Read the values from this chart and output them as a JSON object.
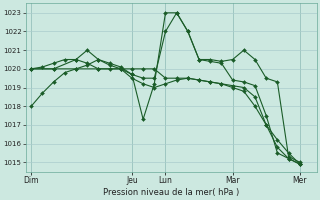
{
  "background_color": "#cce8e0",
  "plot_bg_color": "#cce8e0",
  "grid_color": "#aacccc",
  "line_color": "#1a5c28",
  "xlabel_text": "Pression niveau de la mer( hPa )",
  "ylim": [
    1014.5,
    1023.5
  ],
  "yticks": [
    1015,
    1016,
    1017,
    1018,
    1019,
    1020,
    1021,
    1022,
    1023
  ],
  "day_labels": [
    "Dim",
    "Jeu",
    "Lun",
    "Mar",
    "Mer"
  ],
  "day_x": [
    0,
    9,
    12,
    18,
    24
  ],
  "vline_x": [
    0,
    9,
    12,
    18,
    24
  ],
  "xlim": [
    -0.5,
    25.5
  ],
  "lines": [
    {
      "x": [
        0,
        1,
        2,
        3,
        4,
        5,
        6,
        7,
        8,
        9,
        10,
        11,
        12,
        13,
        14,
        15,
        16,
        17,
        18,
        19,
        20,
        21,
        22,
        23,
        24
      ],
      "y": [
        1018.0,
        1018.7,
        1019.3,
        1019.8,
        1020.0,
        1020.2,
        1020.5,
        1020.3,
        1020.1,
        1019.7,
        1017.3,
        1019.2,
        1023.0,
        1023.0,
        1022.0,
        1020.5,
        1020.4,
        1020.3,
        1019.4,
        1019.3,
        1019.1,
        1017.5,
        1015.5,
        1015.2,
        1014.9
      ]
    },
    {
      "x": [
        0,
        2,
        4,
        6,
        8,
        9,
        10,
        11,
        12,
        13,
        14,
        15,
        16,
        17,
        18,
        19,
        20,
        21,
        22,
        23,
        24
      ],
      "y": [
        1020.0,
        1020.0,
        1020.0,
        1020.0,
        1020.0,
        1020.0,
        1020.0,
        1020.0,
        1019.5,
        1019.5,
        1019.5,
        1019.4,
        1019.3,
        1019.2,
        1019.0,
        1018.8,
        1018.0,
        1017.0,
        1016.2,
        1015.5,
        1014.9
      ]
    },
    {
      "x": [
        0,
        1,
        2,
        3,
        4,
        5,
        6,
        7,
        8,
        9,
        10,
        11,
        12,
        13,
        14,
        15,
        16,
        17,
        18,
        19,
        20,
        21,
        22,
        23,
        24
      ],
      "y": [
        1020.0,
        1020.1,
        1020.3,
        1020.5,
        1020.5,
        1020.3,
        1020.0,
        1020.0,
        1020.0,
        1019.7,
        1019.5,
        1019.5,
        1022.0,
        1023.0,
        1022.0,
        1020.5,
        1020.5,
        1020.4,
        1020.5,
        1021.0,
        1020.5,
        1019.5,
        1019.3,
        1015.3,
        1015.0
      ]
    },
    {
      "x": [
        0,
        2,
        4,
        5,
        6,
        7,
        8,
        9,
        10,
        11,
        12,
        13,
        14,
        15,
        16,
        17,
        18,
        19,
        20,
        21,
        22,
        23,
        24
      ],
      "y": [
        1020.0,
        1020.0,
        1020.5,
        1021.0,
        1020.5,
        1020.2,
        1020.0,
        1019.5,
        1019.2,
        1019.0,
        1019.2,
        1019.4,
        1019.5,
        1019.4,
        1019.3,
        1019.2,
        1019.1,
        1019.0,
        1018.5,
        1017.0,
        1015.8,
        1015.2,
        1014.9
      ]
    }
  ]
}
